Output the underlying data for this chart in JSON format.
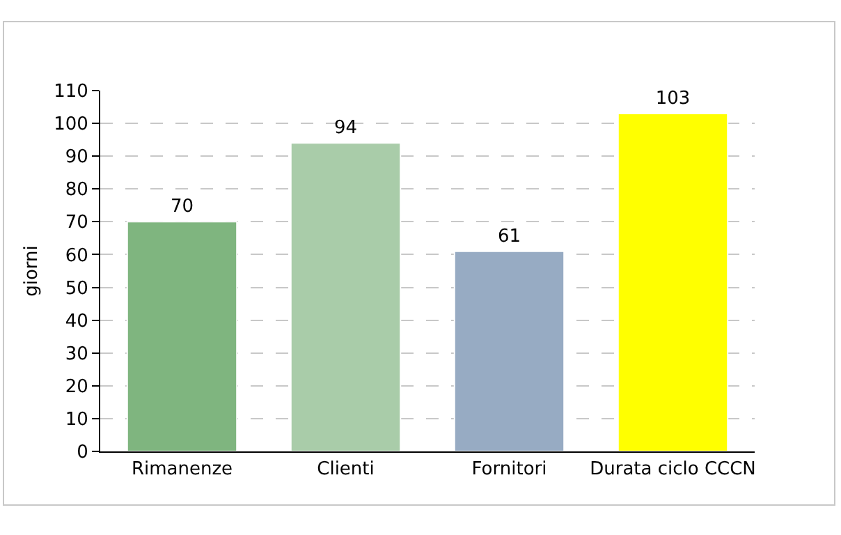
{
  "chart_data": {
    "type": "bar",
    "ylabel": "giorni",
    "categories": [
      "Rimanenze",
      "Clienti",
      "Fornitori",
      "Durata ciclo CCCN"
    ],
    "values": [
      70,
      94,
      61,
      103
    ],
    "colors": [
      "#7fb57f",
      "#a9cca9",
      "#97abc3",
      "#ffff00"
    ],
    "ylim": [
      0,
      110
    ],
    "yticks": [
      0,
      10,
      20,
      30,
      40,
      50,
      60,
      70,
      80,
      90,
      100,
      110
    ],
    "grid": "y",
    "data_labels": true,
    "legend": false
  }
}
